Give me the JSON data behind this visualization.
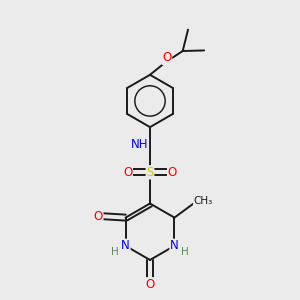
{
  "bg_color": "#ebebeb",
  "bond_color": "#1a1a1a",
  "bond_width": 1.4,
  "atom_colors": {
    "N": "#0000ff",
    "O": "#ff0000",
    "S": "#cccc00",
    "C": "#1a1a1a",
    "H": "#5a8a5a"
  },
  "font_size": 8.5,
  "fig_width": 3.0,
  "fig_height": 3.0,
  "dpi": 100
}
